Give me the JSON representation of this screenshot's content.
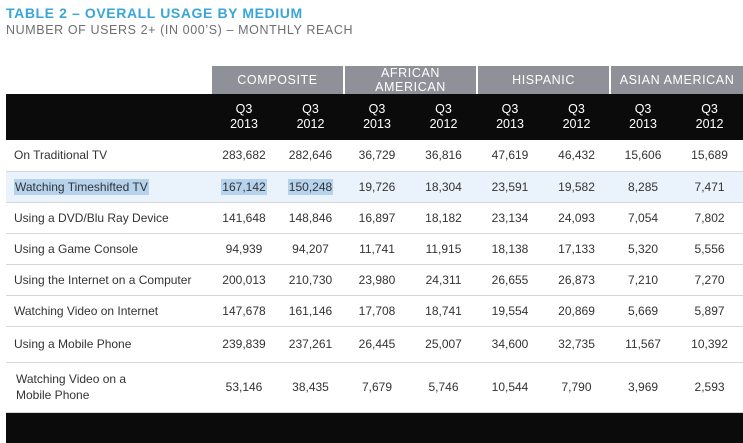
{
  "title": "TABLE 2 – OVERALL USAGE BY MEDIUM",
  "subtitle": "NUMBER OF USERS 2+ (IN 000’S) – MONTHLY REACH",
  "groups": [
    "COMPOSITE",
    "AFRICAN AMERICAN",
    "HISPANIC",
    "ASIAN AMERICAN"
  ],
  "periods": [
    {
      "q": "Q3",
      "y": "2013"
    },
    {
      "q": "Q3",
      "y": "2012"
    },
    {
      "q": "Q3",
      "y": "2013"
    },
    {
      "q": "Q3",
      "y": "2012"
    },
    {
      "q": "Q3",
      "y": "2013"
    },
    {
      "q": "Q3",
      "y": "2012"
    },
    {
      "q": "Q3",
      "y": "2013"
    },
    {
      "q": "Q3",
      "y": "2012"
    }
  ],
  "rows": [
    {
      "label": "On Traditional TV",
      "values": [
        "283,682",
        "282,646",
        "36,729",
        "36,816",
        "47,619",
        "46,432",
        "15,606",
        "15,689"
      ]
    },
    {
      "label": "Watching Timeshifted TV",
      "values": [
        "167,142",
        "150,248",
        "19,726",
        "18,304",
        "23,591",
        "19,582",
        "8,285",
        "7,471"
      ]
    },
    {
      "label": "Using a DVD/Blu Ray Device",
      "values": [
        "141,648",
        "148,846",
        "16,897",
        "18,182",
        "23,134",
        "24,093",
        "7,054",
        "7,802"
      ]
    },
    {
      "label": "Using a Game Console",
      "values": [
        "94,939",
        "94,207",
        "11,741",
        "11,915",
        "18,138",
        "17,133",
        "5,320",
        "5,556"
      ]
    },
    {
      "label": "Using the Internet on a Computer",
      "values": [
        "200,013",
        "210,730",
        "23,980",
        "24,311",
        "26,655",
        "26,873",
        "7,210",
        "7,270"
      ]
    },
    {
      "label": "Watching Video on Internet",
      "values": [
        "147,678",
        "161,146",
        "17,708",
        "18,741",
        "19,554",
        "20,869",
        "5,669",
        "5,897"
      ]
    },
    {
      "label": "Using a Mobile Phone",
      "values": [
        "239,839",
        "237,261",
        "26,445",
        "25,007",
        "34,600",
        "32,735",
        "11,567",
        "10,392"
      ]
    },
    {
      "label_line1": "Watching Video on a",
      "label_line2": "Mobile Phone",
      "values": [
        "53,146",
        "38,435",
        "7,679",
        "5,746",
        "10,544",
        "7,790",
        "3,969",
        "2,593"
      ]
    }
  ]
}
